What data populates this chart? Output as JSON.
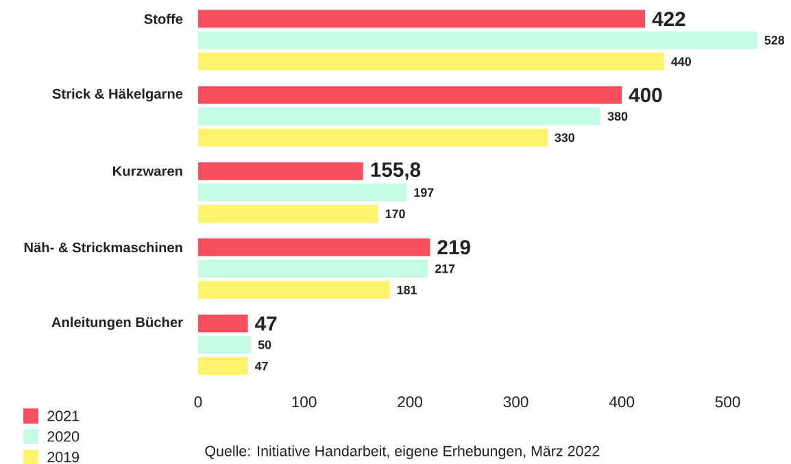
{
  "chart_data": {
    "type": "bar",
    "orientation": "horizontal",
    "categories": [
      "Stoffe",
      "Strick & Häkelgarne",
      "Kurzwaren",
      "Näh- & Strickmaschinen",
      "Anleitungen Bücher"
    ],
    "series": [
      {
        "name": "2021",
        "color": "#f74f5c",
        "values": [
          422,
          400,
          155.8,
          219,
          47
        ],
        "value_labels": [
          "422",
          "400",
          "155,8",
          "219",
          "47"
        ]
      },
      {
        "name": "2020",
        "color": "#c5fbe3",
        "values": [
          528,
          380,
          197,
          217,
          50
        ],
        "value_labels": [
          "528",
          "380",
          "197",
          "217",
          "50"
        ]
      },
      {
        "name": "2019",
        "color": "#fff36e",
        "values": [
          440,
          330,
          170,
          181,
          47
        ],
        "value_labels": [
          "440",
          "330",
          "170",
          "181",
          "47"
        ]
      }
    ],
    "xlim": [
      0,
      530
    ],
    "xticks": [
      0,
      100,
      200,
      300,
      400,
      500
    ],
    "legend": "bottom left",
    "annotations": [
      "Quelle: Initiative Handarbeit, eigene Erhebungen, März 2022"
    ]
  }
}
